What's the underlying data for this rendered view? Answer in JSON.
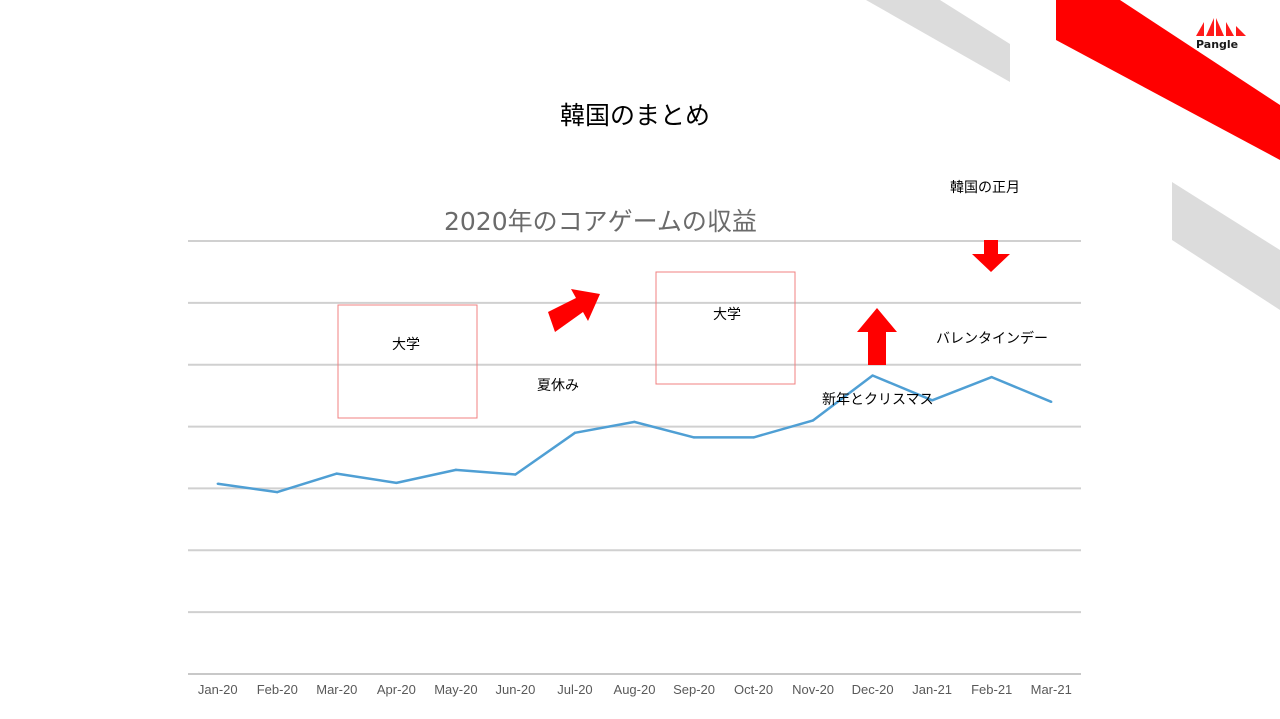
{
  "slide": {
    "title": "韓国のまとめ",
    "brand": "Pangle",
    "brand_color": "#ff0000",
    "accent_gray": "#dcdcdc"
  },
  "annotations": {
    "box1_label": "大学",
    "box2_label": "大学",
    "summer": "夏休み",
    "lunar_new_year": "韓国の正月",
    "valentine": "バレンタインデー",
    "new_year_christmas": "新年とクリスマス",
    "arrow_color": "#ff0000",
    "box_color": "#f08080"
  },
  "chart_data": {
    "type": "line",
    "title": "2020年のコアゲームの収益",
    "categories": [
      "Jan-20",
      "Feb-20",
      "Mar-20",
      "Apr-20",
      "May-20",
      "Jun-20",
      "Jul-20",
      "Aug-20",
      "Sep-20",
      "Oct-20",
      "Nov-20",
      "Dec-20",
      "Jan-21",
      "Feb-21",
      "Mar-21"
    ],
    "series": [
      {
        "values": [
          61.5,
          58.8,
          64.8,
          61.8,
          66.0,
          64.5,
          78.0,
          81.5,
          76.5,
          76.5,
          82.0,
          96.5,
          88.5,
          96.0,
          88.0
        ],
        "color": "#4f9fd4"
      }
    ],
    "ylim": [
      0,
      140
    ],
    "gridlines": 7,
    "grid": true,
    "legend": false
  }
}
